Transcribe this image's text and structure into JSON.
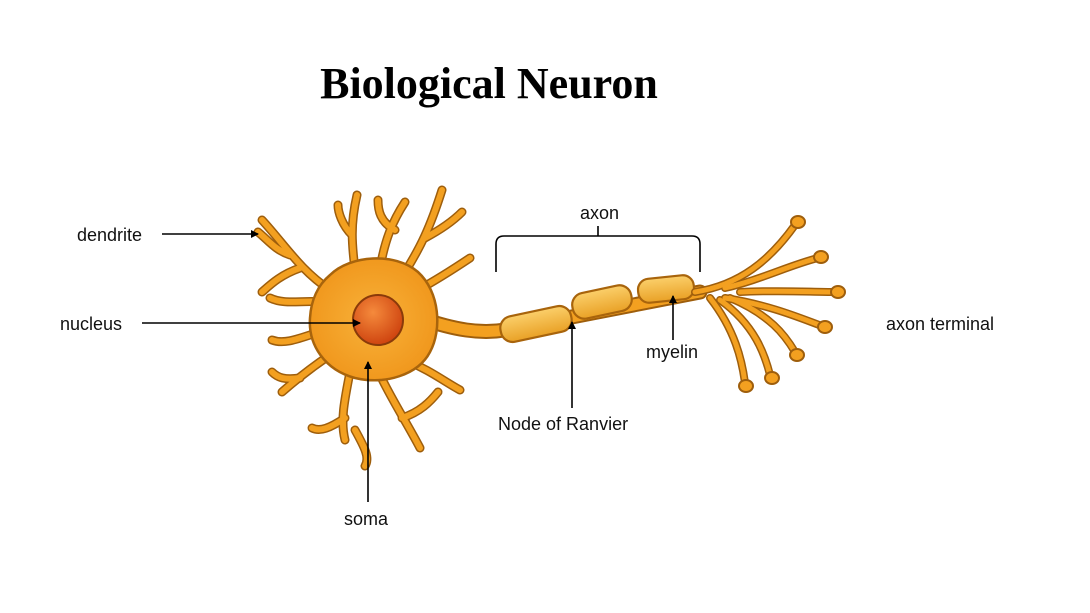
{
  "title": "Biological Neuron",
  "labels": {
    "dendrite": "dendrite",
    "nucleus": "nucleus",
    "soma": "soma",
    "axon": "axon",
    "myelin": "myelin",
    "node_of_ranvier": "Node of Ranvier",
    "axon_terminal": "axon terminal"
  },
  "colors": {
    "cell_fill": "#f4a21e",
    "cell_outline": "#a8640c",
    "nucleus_fill": "#e2561a",
    "myelin_fill": "#f6b73c",
    "arrow": "#000000"
  }
}
